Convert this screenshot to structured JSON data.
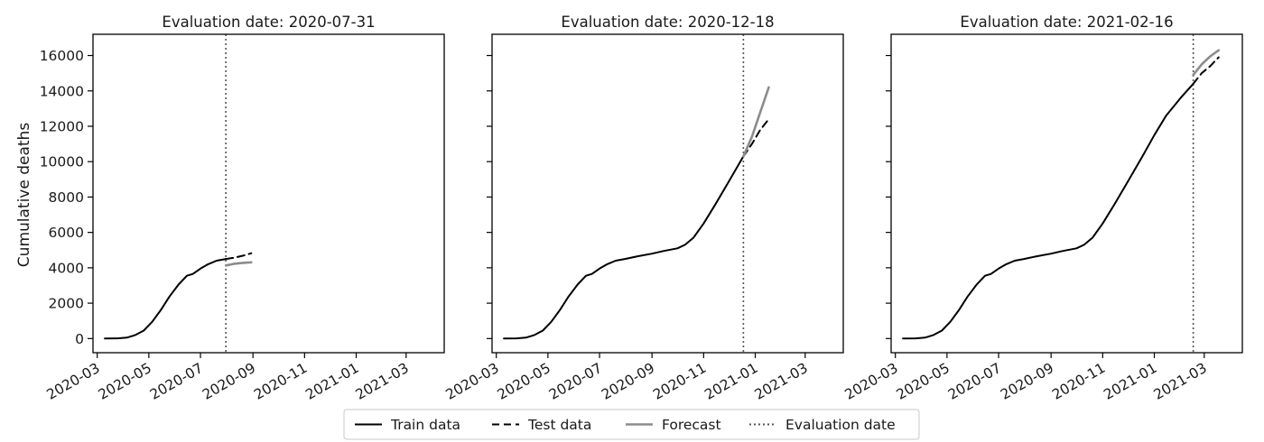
{
  "figure": {
    "y_axis_label": "Cumulative deaths",
    "legend": [
      {
        "label": "Train data",
        "style": "solid",
        "color": "#000000"
      },
      {
        "label": "Test data",
        "style": "dashed",
        "color": "#000000"
      },
      {
        "label": "Forecast",
        "style": "solid",
        "color": "#8c8c8c"
      },
      {
        "label": "Evaluation date",
        "style": "dotted",
        "color": "#555555"
      }
    ],
    "legend_location": "bottom-center"
  },
  "chart_data": [
    {
      "type": "line",
      "title": "Evaluation date: 2020-07-31",
      "ylabel": "Cumulative deaths",
      "ylim": [
        -800,
        17200
      ],
      "xlim": [
        "2020-02-25",
        "2021-04-15"
      ],
      "x_ticks": [
        "2020-03-01",
        "2020-05-01",
        "2020-07-01",
        "2020-09-01",
        "2020-11-01",
        "2021-01-01",
        "2021-03-01"
      ],
      "x_tick_labels": [
        "2020-03",
        "2020-05",
        "2020-07",
        "2020-09",
        "2020-11",
        "2021-01",
        "2021-03"
      ],
      "y_ticks": [
        0,
        2000,
        4000,
        6000,
        8000,
        10000,
        12000,
        14000,
        16000
      ],
      "y_tick_labels": [
        "0",
        "2000",
        "4000",
        "6000",
        "8000",
        "10000",
        "12000",
        "14000",
        "16000"
      ],
      "evaluation_date": "2020-07-31",
      "series": [
        {
          "name": "Train data",
          "x": [
            "2020-03-10",
            "2020-03-25",
            "2020-04-05",
            "2020-04-15",
            "2020-04-25",
            "2020-05-05",
            "2020-05-15",
            "2020-05-25",
            "2020-06-05",
            "2020-06-15",
            "2020-06-22",
            "2020-07-01",
            "2020-07-10",
            "2020-07-20",
            "2020-07-31"
          ],
          "y": [
            0,
            10,
            50,
            200,
            450,
            950,
            1600,
            2350,
            3050,
            3550,
            3650,
            3950,
            4200,
            4400,
            4500
          ]
        },
        {
          "name": "Test data",
          "x": [
            "2020-07-31",
            "2020-08-10",
            "2020-08-20",
            "2020-08-30"
          ],
          "y": [
            4500,
            4570,
            4680,
            4820
          ]
        },
        {
          "name": "Forecast",
          "x": [
            "2020-07-31",
            "2020-08-10",
            "2020-08-20",
            "2020-08-30"
          ],
          "y": [
            4130,
            4230,
            4280,
            4310
          ]
        }
      ]
    },
    {
      "type": "line",
      "title": "Evaluation date: 2020-12-18",
      "ylabel": "",
      "ylim": [
        -800,
        17200
      ],
      "xlim": [
        "2020-02-25",
        "2021-04-15"
      ],
      "x_ticks": [
        "2020-03-01",
        "2020-05-01",
        "2020-07-01",
        "2020-09-01",
        "2020-11-01",
        "2021-01-01",
        "2021-03-01"
      ],
      "x_tick_labels": [
        "2020-03",
        "2020-05",
        "2020-07",
        "2020-09",
        "2020-11",
        "2021-01",
        "2021-03"
      ],
      "y_ticks": [
        0,
        2000,
        4000,
        6000,
        8000,
        10000,
        12000,
        14000,
        16000
      ],
      "y_tick_labels": [
        "",
        "",
        "",
        "",
        "",
        "",
        "",
        "",
        ""
      ],
      "evaluation_date": "2020-12-18",
      "series": [
        {
          "name": "Train data",
          "x": [
            "2020-03-10",
            "2020-03-25",
            "2020-04-05",
            "2020-04-15",
            "2020-04-25",
            "2020-05-05",
            "2020-05-15",
            "2020-05-25",
            "2020-06-05",
            "2020-06-15",
            "2020-06-22",
            "2020-07-01",
            "2020-07-10",
            "2020-07-20",
            "2020-07-31",
            "2020-08-15",
            "2020-09-01",
            "2020-09-15",
            "2020-10-01",
            "2020-10-10",
            "2020-10-20",
            "2020-11-01",
            "2020-11-15",
            "2020-12-01",
            "2020-12-18"
          ],
          "y": [
            0,
            10,
            50,
            200,
            450,
            950,
            1600,
            2350,
            3050,
            3550,
            3650,
            3950,
            4200,
            4400,
            4500,
            4650,
            4800,
            4950,
            5100,
            5300,
            5700,
            6500,
            7600,
            8900,
            10300
          ]
        },
        {
          "name": "Test data",
          "x": [
            "2020-12-18",
            "2020-12-28",
            "2021-01-07",
            "2021-01-17"
          ],
          "y": [
            10300,
            11000,
            11800,
            12400
          ]
        },
        {
          "name": "Forecast",
          "x": [
            "2020-12-18",
            "2020-12-28",
            "2021-01-07",
            "2021-01-17"
          ],
          "y": [
            10300,
            11400,
            12800,
            14200
          ]
        }
      ]
    },
    {
      "type": "line",
      "title": "Evaluation date: 2021-02-16",
      "ylabel": "",
      "ylim": [
        -800,
        17200
      ],
      "xlim": [
        "2020-02-25",
        "2021-04-15"
      ],
      "x_ticks": [
        "2020-03-01",
        "2020-05-01",
        "2020-07-01",
        "2020-09-01",
        "2020-11-01",
        "2021-01-01",
        "2021-03-01"
      ],
      "x_tick_labels": [
        "2020-03",
        "2020-05",
        "2020-07",
        "2020-09",
        "2020-11",
        "2021-01",
        "2021-03"
      ],
      "y_ticks": [
        0,
        2000,
        4000,
        6000,
        8000,
        10000,
        12000,
        14000,
        16000
      ],
      "y_tick_labels": [
        "",
        "",
        "",
        "",
        "",
        "",
        "",
        "",
        ""
      ],
      "evaluation_date": "2021-02-16",
      "series": [
        {
          "name": "Train data",
          "x": [
            "2020-03-10",
            "2020-03-25",
            "2020-04-05",
            "2020-04-15",
            "2020-04-25",
            "2020-05-05",
            "2020-05-15",
            "2020-05-25",
            "2020-06-05",
            "2020-06-15",
            "2020-06-22",
            "2020-07-01",
            "2020-07-10",
            "2020-07-20",
            "2020-07-31",
            "2020-08-15",
            "2020-09-01",
            "2020-09-15",
            "2020-10-01",
            "2020-10-10",
            "2020-10-20",
            "2020-11-01",
            "2020-11-15",
            "2020-12-01",
            "2020-12-18",
            "2021-01-01",
            "2021-01-15",
            "2021-02-01",
            "2021-02-16"
          ],
          "y": [
            0,
            10,
            50,
            200,
            450,
            950,
            1600,
            2350,
            3050,
            3550,
            3650,
            3950,
            4200,
            4400,
            4500,
            4650,
            4800,
            4950,
            5100,
            5300,
            5700,
            6500,
            7600,
            8900,
            10300,
            11500,
            12600,
            13600,
            14400
          ]
        },
        {
          "name": "Test data",
          "x": [
            "2021-02-16",
            "2021-02-26",
            "2021-03-08",
            "2021-03-18"
          ],
          "y": [
            14400,
            15000,
            15400,
            15900
          ]
        },
        {
          "name": "Forecast",
          "x": [
            "2021-02-16",
            "2021-02-26",
            "2021-03-08",
            "2021-03-18"
          ],
          "y": [
            14900,
            15500,
            15950,
            16300
          ]
        }
      ]
    }
  ]
}
